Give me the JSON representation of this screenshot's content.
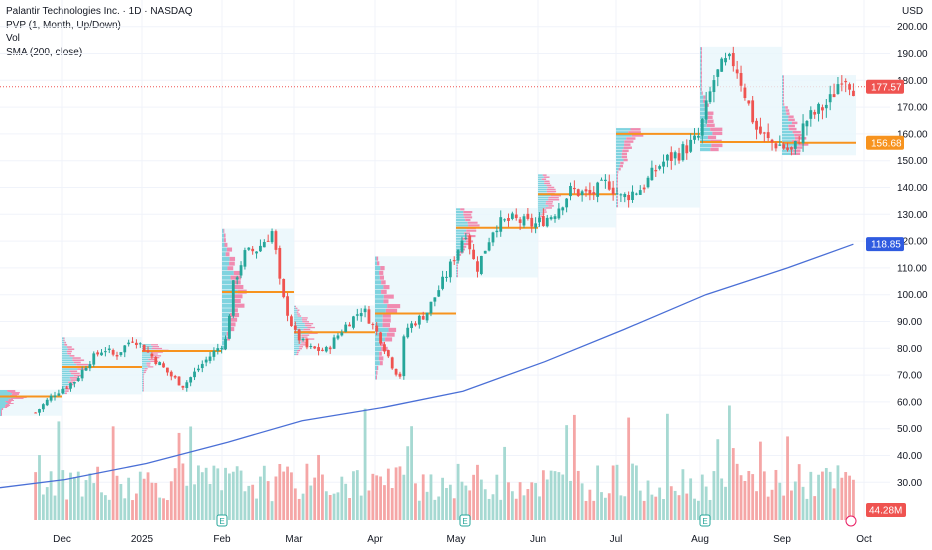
{
  "legend": {
    "title": "Palantir Technologies Inc. · 1D · NASDAQ",
    "pvp": "PVP (1, Month, Up/Down)",
    "vol": "Vol",
    "sma": "SMA (200, close)"
  },
  "chart_data": {
    "type": "candlestick",
    "currency": "USD",
    "ylim": [
      23,
      205
    ],
    "y_ticks": [
      "200.00",
      "190.00",
      "180.00",
      "170.00",
      "160.00",
      "150.00",
      "140.00",
      "130.00",
      "120.00",
      "110.00",
      "100.00",
      "90.00",
      "80.00",
      "70.00",
      "60.00",
      "50.00",
      "40.00",
      "30.00"
    ],
    "x_ticks": [
      "Dec",
      "2025",
      "Feb",
      "Mar",
      "Apr",
      "May",
      "Jun",
      "Jul",
      "Aug",
      "Sep",
      "Oct"
    ],
    "price_tags": {
      "last_price": "177.57",
      "poc": "156.68",
      "sma200": "118.85",
      "volume": "44.28M"
    },
    "monthly_poc": [
      {
        "month": "Nov",
        "value": 62
      },
      {
        "month": "Dec",
        "value": 73
      },
      {
        "month": "Jan",
        "value": 79
      },
      {
        "month": "Feb",
        "value": 101
      },
      {
        "month": "Mar",
        "value": 86
      },
      {
        "month": "Apr",
        "value": 93
      },
      {
        "month": "May",
        "value": 125
      },
      {
        "month": "Jun",
        "value": 137.5
      },
      {
        "month": "Jul",
        "value": 160
      },
      {
        "month": "Aug",
        "value": 157
      },
      {
        "month": "Sep",
        "value": 156.7
      }
    ],
    "close_path": [
      {
        "x": "Nov 20",
        "y": 56
      },
      {
        "x": "Nov 27",
        "y": 63
      },
      {
        "x": "Dec 5",
        "y": 68
      },
      {
        "x": "Dec 10",
        "y": 75
      },
      {
        "x": "Dec 16",
        "y": 80
      },
      {
        "x": "Dec 20",
        "y": 77
      },
      {
        "x": "Dec 27",
        "y": 84
      },
      {
        "x": "Jan 3",
        "y": 77
      },
      {
        "x": "Jan 10",
        "y": 70
      },
      {
        "x": "Jan 15",
        "y": 66
      },
      {
        "x": "Jan 22",
        "y": 74
      },
      {
        "x": "Jan 31",
        "y": 83
      },
      {
        "x": "Feb 3",
        "y": 104
      },
      {
        "x": "Feb 7",
        "y": 115
      },
      {
        "x": "Feb 12",
        "y": 117
      },
      {
        "x": "Feb 18",
        "y": 124
      },
      {
        "x": "Feb 21",
        "y": 101
      },
      {
        "x": "Feb 26",
        "y": 86
      },
      {
        "x": "Mar 3",
        "y": 80
      },
      {
        "x": "Mar 10",
        "y": 79
      },
      {
        "x": "Mar 17",
        "y": 88
      },
      {
        "x": "Mar 24",
        "y": 95
      },
      {
        "x": "Mar 31",
        "y": 83
      },
      {
        "x": "Apr 4",
        "y": 74
      },
      {
        "x": "Apr 7",
        "y": 69
      },
      {
        "x": "Apr 9",
        "y": 87
      },
      {
        "x": "Apr 17",
        "y": 93
      },
      {
        "x": "Apr 25",
        "y": 108
      },
      {
        "x": "May 2",
        "y": 124
      },
      {
        "x": "May 6",
        "y": 109
      },
      {
        "x": "May 13",
        "y": 126
      },
      {
        "x": "May 20",
        "y": 128
      },
      {
        "x": "May 28",
        "y": 126
      },
      {
        "x": "Jun 4",
        "y": 130
      },
      {
        "x": "Jun 11",
        "y": 139
      },
      {
        "x": "Jun 18",
        "y": 137
      },
      {
        "x": "Jun 25",
        "y": 142
      },
      {
        "x": "Jun 30",
        "y": 136
      },
      {
        "x": "Jul 8",
        "y": 140
      },
      {
        "x": "Jul 15",
        "y": 149
      },
      {
        "x": "Jul 22",
        "y": 153
      },
      {
        "x": "Jul 29",
        "y": 158
      },
      {
        "x": "Aug 4",
        "y": 180
      },
      {
        "x": "Aug 8",
        "y": 186
      },
      {
        "x": "Aug 12",
        "y": 187
      },
      {
        "x": "Aug 15",
        "y": 178
      },
      {
        "x": "Aug 20",
        "y": 162
      },
      {
        "x": "Aug 25",
        "y": 157
      },
      {
        "x": "Aug 29",
        "y": 156
      },
      {
        "x": "Sep 3",
        "y": 153
      },
      {
        "x": "Sep 8",
        "y": 165
      },
      {
        "x": "Sep 12",
        "y": 168
      },
      {
        "x": "Sep 17",
        "y": 172
      },
      {
        "x": "Sep 22",
        "y": 183
      },
      {
        "x": "Sep 26",
        "y": 177.6
      }
    ],
    "sma200": [
      {
        "x": "Nov 18",
        "y": 28
      },
      {
        "x": "Dec 1",
        "y": 31
      },
      {
        "x": "Jan 1",
        "y": 37
      },
      {
        "x": "Feb 1",
        "y": 45
      },
      {
        "x": "Mar 1",
        "y": 53
      },
      {
        "x": "Apr 1",
        "y": 58
      },
      {
        "x": "May 1",
        "y": 64
      },
      {
        "x": "Jun 1",
        "y": 75
      },
      {
        "x": "Jul 1",
        "y": 87
      },
      {
        "x": "Aug 1",
        "y": 100
      },
      {
        "x": "Sep 1",
        "y": 110
      },
      {
        "x": "Sep 26",
        "y": 118.85
      }
    ],
    "volume_scale_max_millions": 140
  }
}
